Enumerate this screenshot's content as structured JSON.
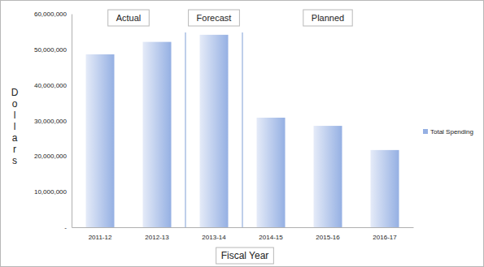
{
  "chart_data": {
    "type": "bar",
    "categories": [
      "2011-12",
      "2012-13",
      "2013-14",
      "2014-15",
      "2015-16",
      "2016-17"
    ],
    "series": [
      {
        "name": "Total Spending",
        "color": "#95b0e3",
        "values": [
          48600000,
          52100000,
          54100000,
          30800000,
          28500000,
          21700000
        ]
      }
    ],
    "x_label": "Fiscal Year",
    "y_label": "Dollars",
    "annotations": [
      "Actual",
      "Forecast",
      "Planned"
    ],
    "ylim": [
      0,
      60000000
    ],
    "yticks": [
      {
        "value": 0,
        "label": "-"
      },
      {
        "value": 10000000,
        "label": "10,000,000"
      },
      {
        "value": 20000000,
        "label": "20,000,000"
      },
      {
        "value": 30000000,
        "label": "30,000,000"
      },
      {
        "value": 40000000,
        "label": "40,000,000"
      },
      {
        "value": 50000000,
        "label": "50,000,000"
      },
      {
        "value": 60000000,
        "label": "60,000,000"
      }
    ],
    "grid": false,
    "legend": "right"
  }
}
